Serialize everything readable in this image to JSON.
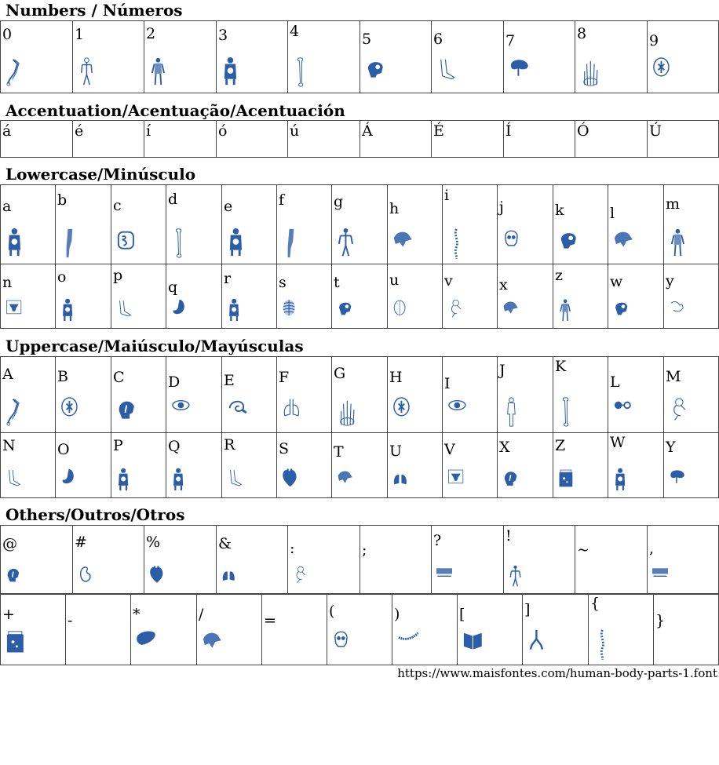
{
  "accent_color": "#2c5ea8",
  "sections": {
    "numbers": {
      "title": "Numbers / Números",
      "cells": [
        {
          "char": "0",
          "icon": "arm-bones-icon"
        },
        {
          "char": "1",
          "icon": "body-veins-icon"
        },
        {
          "char": "2",
          "icon": "body-muscles-icon"
        },
        {
          "char": "3",
          "icon": "torso-organs-icon"
        },
        {
          "char": "4",
          "icon": "femur-icon"
        },
        {
          "char": "5",
          "icon": "skull-side-icon"
        },
        {
          "char": "6",
          "icon": "foot-icon"
        },
        {
          "char": "7",
          "icon": "brain-stem-icon"
        },
        {
          "char": "8",
          "icon": "hand-bones-icon"
        },
        {
          "char": "9",
          "icon": "brain-top-icon"
        }
      ]
    },
    "accents": {
      "title": "Accentuation/Acentuação/Acentuación",
      "cells": [
        {
          "char": "á"
        },
        {
          "char": "é"
        },
        {
          "char": "í"
        },
        {
          "char": "ó"
        },
        {
          "char": "ú"
        },
        {
          "char": "Á"
        },
        {
          "char": "É"
        },
        {
          "char": "Í"
        },
        {
          "char": "Ó"
        },
        {
          "char": "Ú"
        }
      ]
    },
    "lowercase": {
      "title": "Lowercase/Minúsculo",
      "rows": [
        [
          {
            "char": "a",
            "icon": "torso-organs-icon"
          },
          {
            "char": "b",
            "icon": "leg-muscles-icon"
          },
          {
            "char": "c",
            "icon": "intestines-icon"
          },
          {
            "char": "d",
            "icon": "femur-icon"
          },
          {
            "char": "e",
            "icon": "torso-organs-icon"
          },
          {
            "char": "f",
            "icon": "leg-muscles-icon"
          },
          {
            "char": "g",
            "icon": "skeleton-icon"
          },
          {
            "char": "h",
            "icon": "pelvis-icon"
          },
          {
            "char": "i",
            "icon": "spine-icon"
          },
          {
            "char": "j",
            "icon": "skull-front-icon"
          },
          {
            "char": "k",
            "icon": "skull-side-icon"
          },
          {
            "char": "l",
            "icon": "pelvis-icon"
          },
          {
            "char": "m",
            "icon": "body-muscles-icon"
          }
        ],
        [
          {
            "char": "n",
            "icon": "uterus-icon"
          },
          {
            "char": "o",
            "icon": "torso-organs-icon"
          },
          {
            "char": "p",
            "icon": "foot-icon"
          },
          {
            "char": "q",
            "icon": "stomach-icon"
          },
          {
            "char": "r",
            "icon": "torso-organs-icon"
          },
          {
            "char": "s",
            "icon": "ribcage-icon"
          },
          {
            "char": "t",
            "icon": "skull-side-icon"
          },
          {
            "char": "u",
            "icon": "skull-top-icon"
          },
          {
            "char": "v",
            "icon": "fetus-icon"
          },
          {
            "char": "x",
            "icon": "pelvis-icon"
          },
          {
            "char": "z",
            "icon": "body-muscles-icon"
          },
          {
            "char": "w",
            "icon": "skull-side-icon"
          },
          {
            "char": "y",
            "icon": "arm-icon"
          }
        ]
      ]
    },
    "uppercase": {
      "title": "Uppercase/Maiúsculo/Mayúsculas",
      "rows": [
        [
          {
            "char": "A",
            "icon": "arm-bones-icon"
          },
          {
            "char": "B",
            "icon": "brain-top-icon"
          },
          {
            "char": "C",
            "icon": "head-section-icon"
          },
          {
            "char": "D",
            "icon": "eye-icon"
          },
          {
            "char": "E",
            "icon": "ear-icon"
          },
          {
            "char": "F",
            "icon": "lungs-outline-icon"
          },
          {
            "char": "G",
            "icon": "hand-bones-icon"
          },
          {
            "char": "H",
            "icon": "brain-top-icon"
          },
          {
            "char": "I",
            "icon": "eye-icon"
          },
          {
            "char": "J",
            "icon": "body-outline-icon"
          },
          {
            "char": "K",
            "icon": "femur-icon"
          },
          {
            "char": "L",
            "icon": "glasses-icon"
          },
          {
            "char": "M",
            "icon": "fetus-icon"
          }
        ],
        [
          {
            "char": "N",
            "icon": "foot-icon"
          },
          {
            "char": "O",
            "icon": "stomach-icon"
          },
          {
            "char": "P",
            "icon": "torso-organs-icon"
          },
          {
            "char": "Q",
            "icon": "torso-organs-icon"
          },
          {
            "char": "R",
            "icon": "foot-icon"
          },
          {
            "char": "S",
            "icon": "heart-icon"
          },
          {
            "char": "T",
            "icon": "pelvis-icon"
          },
          {
            "char": "U",
            "icon": "lungs-icon"
          },
          {
            "char": "V",
            "icon": "uterus-icon"
          },
          {
            "char": "X",
            "icon": "head-section-icon"
          },
          {
            "char": "Z",
            "icon": "jar-icon"
          },
          {
            "char": "W",
            "icon": "torso-organs-icon"
          },
          {
            "char": "Y",
            "icon": "brain-stem-icon"
          }
        ]
      ]
    },
    "others": {
      "title": "Others/Outros/Otros",
      "rows": [
        [
          {
            "char": "@",
            "icon": "head-section-icon"
          },
          {
            "char": "#",
            "icon": "kidney-icon"
          },
          {
            "char": "%",
            "icon": "heart-icon"
          },
          {
            "char": "&",
            "icon": "lungs-icon"
          },
          {
            "char": ":",
            "icon": "fetus-icon"
          },
          {
            "char": ";"
          },
          {
            "char": "?",
            "icon": "logo-icon"
          },
          {
            "char": "!",
            "icon": "skeleton-icon"
          },
          {
            "char": "~"
          },
          {
            "char": ",",
            "icon": "logo-icon"
          }
        ],
        [
          {
            "char": "+",
            "icon": "jar-icon"
          },
          {
            "char": "-"
          },
          {
            "char": "*",
            "icon": "liver-icon"
          },
          {
            "char": "/",
            "icon": "pelvis-icon"
          },
          {
            "char": "="
          },
          {
            "char": "(",
            "icon": "skull-front-icon"
          },
          {
            "char": ")",
            "icon": "jaw-icon"
          },
          {
            "char": "[",
            "icon": "book-icon"
          },
          {
            "char": "]",
            "icon": "bronchi-icon"
          },
          {
            "char": "{",
            "icon": "spine-icon"
          },
          {
            "char": "}"
          }
        ]
      ]
    }
  },
  "footer": {
    "url": "https://www.maisfontes.com/human-body-parts-1.font"
  }
}
